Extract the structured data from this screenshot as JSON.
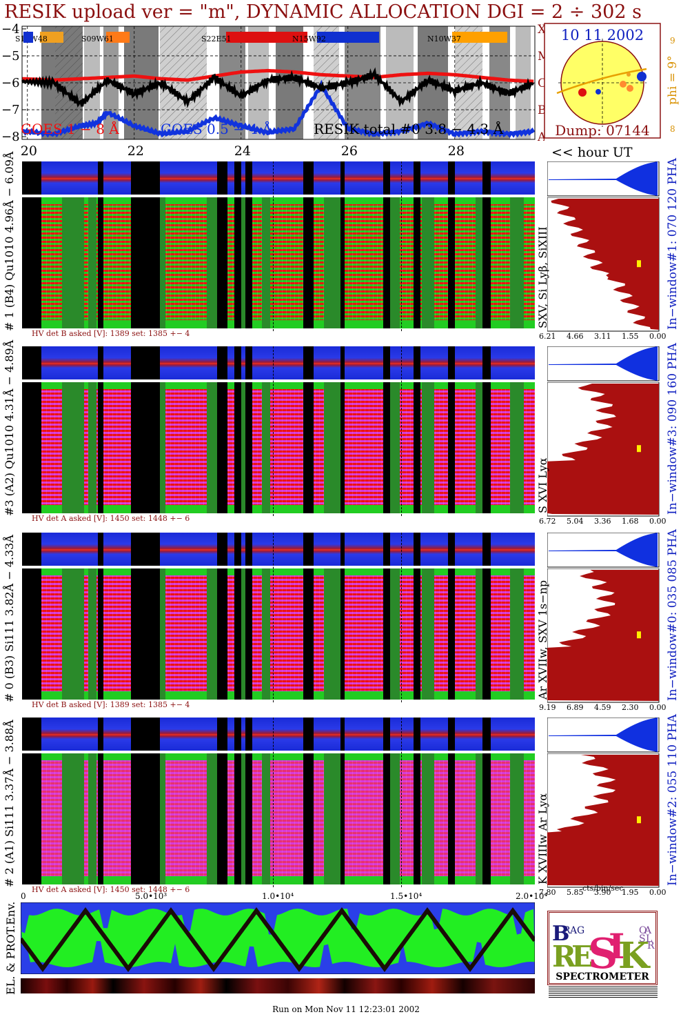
{
  "header": {
    "title": "RESIK upload ver = \"m\", DYNAMIC ALLOCATION  DGI =   2 ÷ 302 s"
  },
  "goes_panel": {
    "y_ticks": [
      "−4",
      "−5",
      "−6",
      "−7",
      "−8"
    ],
    "regions": [
      {
        "label": "S13W48",
        "color": "#f0a020"
      },
      {
        "label": "S09W61",
        "color": "#ff7a18"
      },
      {
        "label": "S22E51",
        "color": "#dd1010"
      },
      {
        "label": "N15W92",
        "color": "#1030d0"
      },
      {
        "label": "N10W37",
        "color": "#ffa000"
      }
    ],
    "legend": {
      "goes_long": "GOES 1 − 8 Å",
      "goes_short": "GOES 0.5 − 4 Å",
      "resik_total": "RESIK total #0  3.8 − 4.3 Å"
    },
    "right_letters": [
      "X",
      "M",
      "C",
      "B",
      "A"
    ],
    "series_colors": {
      "goes_long": "#ee1111",
      "goes_short": "#1133dd",
      "resik_total": "#000000"
    }
  },
  "sun_panel": {
    "date": "10 11 2002",
    "dump": "Dump: 07144",
    "phi": "phi =  9°",
    "phi_max": "9",
    "phi_min": "8"
  },
  "time_axis": {
    "ticks": [
      "20",
      "22",
      "24",
      "26",
      "28"
    ],
    "unit": "<< hour UT"
  },
  "channels": [
    {
      "id": "ch1",
      "label": "# 1 (B4) Qu1010 4.96Å − 6.09Å",
      "line_id": "SXV, Si Lyβ, SiXIII",
      "window": "In−window#1:  070 120 PHA",
      "hv": "HV det B asked [V]:  1389 set:  1385 +−    4",
      "hist_ticks": [
        "6.21",
        "4.66",
        "3.11",
        "1.55",
        "0.00"
      ],
      "scheme": "green"
    },
    {
      "id": "ch3",
      "label": "#3 (A2) Qu1010  4.31Å − 4.89Å",
      "line_id": "S XVI Lyα",
      "window": "In−window#3:  090 160 PHA",
      "hv": "HV det A asked [V]:  1450 set:  1448 +−    6",
      "hist_ticks": [
        "6.72",
        "5.04",
        "3.36",
        "1.68",
        "0.00"
      ],
      "scheme": "magenta"
    },
    {
      "id": "ch0",
      "label": "# 0 (B3) Si111  3.82Å − 4.33Å",
      "line_id": "Ar XVIIw,  SXV 1s−np",
      "window": "In−window#0:  035 085 PHA",
      "hv": "HV det B asked [V]:  1389 set:  1385 +−    4",
      "hist_ticks": [
        "9.19",
        "6.89",
        "4.59",
        "2.30",
        "0.00"
      ],
      "scheme": "red"
    },
    {
      "id": "ch2",
      "label": "# 2 (A1) Si111  3.37Å − 3.88Å",
      "line_id": "K XVIIIw  Ar Lyα",
      "window": "In−window#2:  055 110 PHA",
      "hv": "HV det A asked [V]:  1450 set:  1448 +−    6",
      "hist_ticks": [
        "7.80",
        "5.85",
        "3.90",
        "1.95",
        "0.00"
      ],
      "scheme": "mixed"
    }
  ],
  "hist_unit": "cts/bin/sec",
  "particle_panel": {
    "label": "EL. & PROT.Env.",
    "x_ticks": [
      "0",
      "5.0•10³",
      "1.0•10⁴",
      "1.5•10⁴",
      "2.0•10⁴"
    ]
  },
  "logo": {
    "letters": [
      "B",
      "R",
      "A",
      "G",
      "R",
      "E",
      "S",
      "I",
      "K",
      "S",
      "O",
      "L",
      "A",
      "R"
    ],
    "caption": "SPECTROMETER"
  },
  "footer": {
    "run_time": "Run on Mon Nov 11 12:23:01 2002"
  },
  "chart_data": {
    "type": "line",
    "title": "RESIK upload ver = \"m\", DYNAMIC ALLOCATION  DGI =   2 ÷ 302 s",
    "xlabel": "<< hour UT",
    "x_ticks": [
      20,
      22,
      24,
      26,
      28
    ],
    "xlim": [
      19.9,
      29.5
    ],
    "ylim": [
      -8.1,
      -3.9
    ],
    "y_scale": "log10 flux",
    "series": [
      {
        "name": "GOES 1 − 8 Å",
        "color": "#ee1111",
        "x": [
          19.9,
          20.5,
          21.0,
          21.5,
          22.0,
          22.5,
          23.0,
          23.5,
          24.0,
          24.5,
          25.0,
          25.5,
          26.0,
          26.5,
          27.0,
          27.5,
          28.0,
          28.5,
          29.0,
          29.5
        ],
        "values": [
          -5.85,
          -5.9,
          -5.85,
          -5.8,
          -5.75,
          -5.85,
          -5.9,
          -5.75,
          -5.6,
          -5.55,
          -5.6,
          -5.7,
          -5.75,
          -5.8,
          -5.7,
          -5.65,
          -5.7,
          -5.8,
          -5.9,
          -5.95
        ]
      },
      {
        "name": "GOES 0.5 − 4 Å",
        "color": "#1133dd",
        "x": [
          19.9,
          20.5,
          21.0,
          21.3,
          21.5,
          22.0,
          22.5,
          23.0,
          23.5,
          24.0,
          24.5,
          25.0,
          25.5,
          26.0,
          26.5,
          27.0,
          27.5,
          28.0,
          28.5,
          29.0,
          29.5
        ],
        "values": [
          -7.8,
          -7.9,
          -7.6,
          -7.5,
          -7.1,
          -7.6,
          -7.9,
          -7.8,
          -7.3,
          -7.6,
          -7.85,
          -7.7,
          -6.1,
          -7.7,
          -7.9,
          -7.8,
          -7.5,
          -7.9,
          -7.8,
          -7.9,
          -7.8
        ]
      },
      {
        "name": "RESIK total #0  3.8 − 4.3 Å",
        "color": "#000000",
        "x": [
          19.9,
          20.5,
          21.0,
          21.5,
          22.0,
          22.5,
          23.0,
          23.5,
          24.0,
          24.5,
          25.0,
          25.5,
          26.0,
          26.5,
          27.0,
          27.5,
          28.0,
          28.5,
          29.0,
          29.5
        ],
        "values": [
          -5.95,
          -6.0,
          -6.8,
          -5.9,
          -6.4,
          -6.0,
          -6.7,
          -5.8,
          -6.5,
          -5.9,
          -5.8,
          -6.2,
          -6.0,
          -5.7,
          -6.7,
          -5.9,
          -6.3,
          -6.0,
          -6.4,
          -6.0
        ]
      }
    ]
  }
}
